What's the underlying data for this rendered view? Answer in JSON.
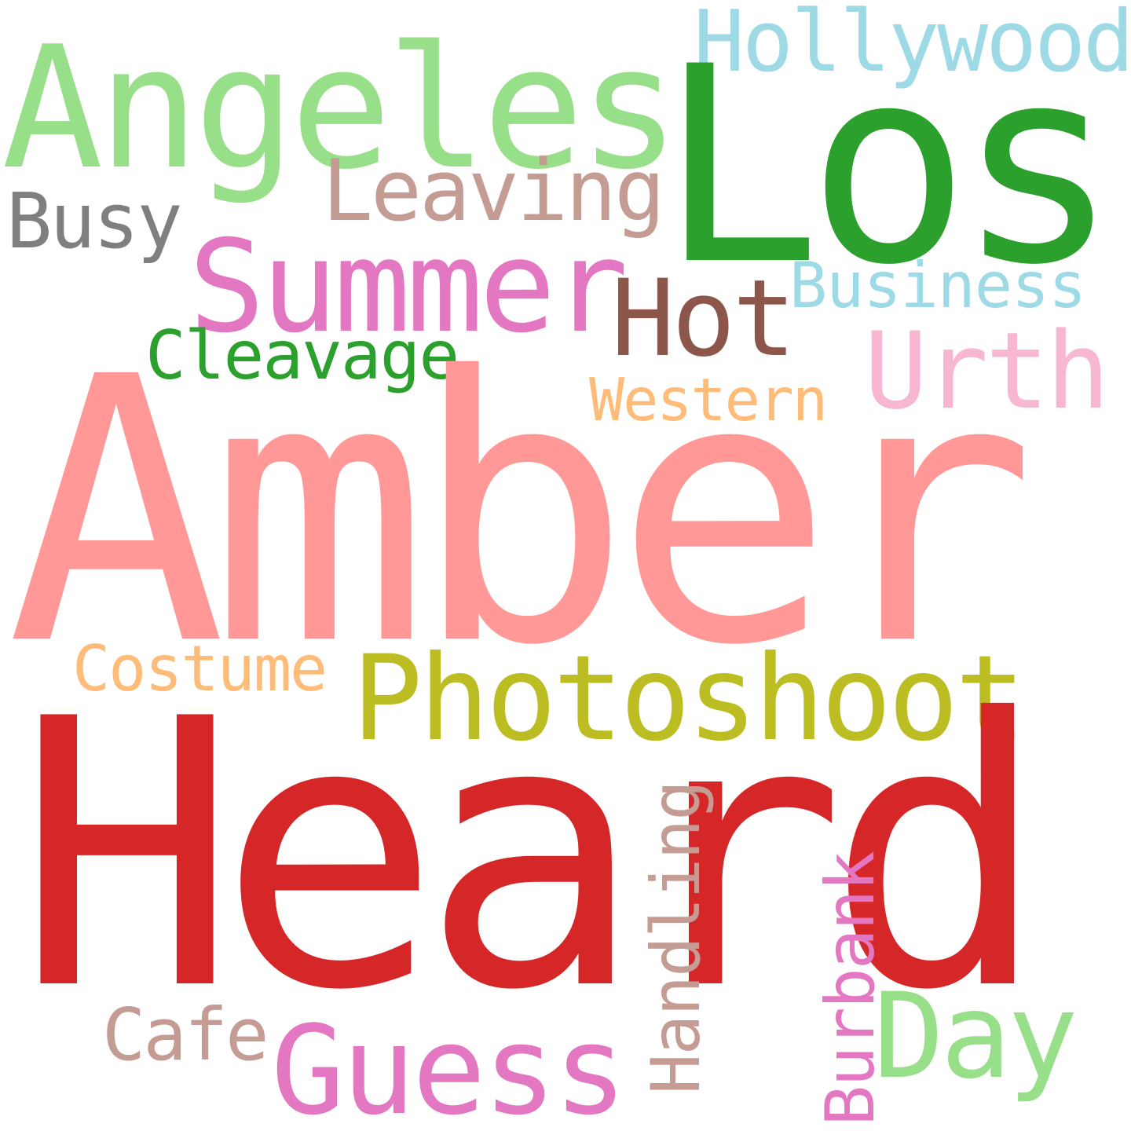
{
  "words": {
    "amber": {
      "text": "Amber",
      "color": "#FF9896"
    },
    "heard": {
      "text": "Heard",
      "color": "#D62728"
    },
    "los": {
      "text": "Los",
      "color": "#2CA02C"
    },
    "angeles": {
      "text": "Angeles",
      "color": "#98DF8A"
    },
    "hollywood": {
      "text": "Hollywood",
      "color": "#9EDAE5"
    },
    "leaving": {
      "text": "Leaving",
      "color": "#C49C94"
    },
    "busy": {
      "text": "Busy",
      "color": "#7F7F7F"
    },
    "summer": {
      "text": "Summer",
      "color": "#E377C2"
    },
    "hot": {
      "text": "Hot",
      "color": "#8C564B"
    },
    "business": {
      "text": "Business",
      "color": "#9EDAE5"
    },
    "cleavage": {
      "text": "Cleavage",
      "color": "#2CA02C"
    },
    "urth": {
      "text": "Urth",
      "color": "#F7B6D2"
    },
    "western": {
      "text": "Western",
      "color": "#FFBB78"
    },
    "costume": {
      "text": "Costume",
      "color": "#FFBB78"
    },
    "photoshoot": {
      "text": "Photoshoot",
      "color": "#BCBD22"
    },
    "guess": {
      "text": "Guess",
      "color": "#E377C2"
    },
    "day": {
      "text": "Day",
      "color": "#98DF8A"
    },
    "cafe": {
      "text": "Cafe",
      "color": "#C49C94"
    },
    "handling": {
      "text": "Handling",
      "color": "#C49C94"
    },
    "burbank": {
      "text": "Burbank",
      "color": "#E377C2"
    }
  }
}
